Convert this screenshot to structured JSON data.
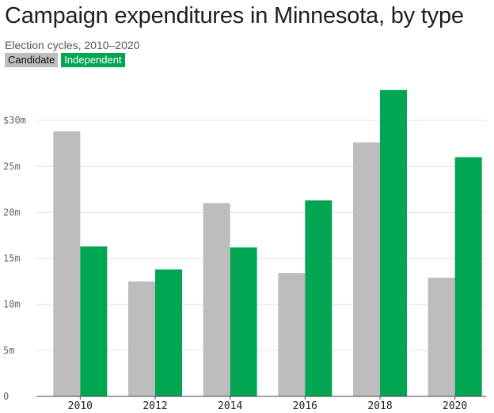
{
  "header": {
    "title": "Campaign expenditures in Minnesota, by type",
    "subtitle": "Election cycles, 2010–2020"
  },
  "legend": {
    "candidate_label": "Candidate",
    "independent_label": "Independent"
  },
  "colors": {
    "candidate": "#bdbcbe",
    "independent": "#00a652",
    "grid": "#e3e3e3"
  },
  "chart_data": {
    "type": "bar",
    "title": "Campaign expenditures in Minnesota, by type",
    "subtitle": "Election cycles, 2010–2020",
    "categories": [
      "2010",
      "2012",
      "2014",
      "2016",
      "2018",
      "2020"
    ],
    "series": [
      {
        "name": "Candidate",
        "values": [
          28.8,
          12.5,
          21.0,
          13.4,
          27.6,
          12.9
        ]
      },
      {
        "name": "Independent",
        "values": [
          16.3,
          13.8,
          16.2,
          21.3,
          33.3,
          26.0
        ]
      }
    ],
    "ylim": [
      0,
      35
    ],
    "yticks": [
      {
        "value": 0,
        "label": "0"
      },
      {
        "value": 5,
        "label": "5m"
      },
      {
        "value": 10,
        "label": "10m"
      },
      {
        "value": 15,
        "label": "15m"
      },
      {
        "value": 20,
        "label": "20m"
      },
      {
        "value": 25,
        "label": "25m"
      },
      {
        "value": 30,
        "label": "$30m"
      }
    ],
    "xlabel": "",
    "ylabel": "",
    "grid": true,
    "legend_position": "top-left"
  }
}
